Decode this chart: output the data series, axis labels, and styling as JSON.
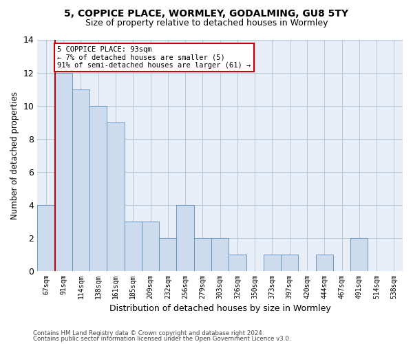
{
  "title1": "5, COPPICE PLACE, WORMLEY, GODALMING, GU8 5TY",
  "title2": "Size of property relative to detached houses in Wormley",
  "xlabel": "Distribution of detached houses by size in Wormley",
  "ylabel": "Number of detached properties",
  "categories": [
    "67sqm",
    "91sqm",
    "114sqm",
    "138sqm",
    "161sqm",
    "185sqm",
    "209sqm",
    "232sqm",
    "256sqm",
    "279sqm",
    "303sqm",
    "326sqm",
    "350sqm",
    "373sqm",
    "397sqm",
    "420sqm",
    "444sqm",
    "467sqm",
    "491sqm",
    "514sqm",
    "538sqm"
  ],
  "values": [
    4,
    12,
    11,
    10,
    9,
    3,
    3,
    2,
    4,
    2,
    2,
    1,
    0,
    1,
    1,
    0,
    1,
    0,
    2,
    0,
    0
  ],
  "bar_color": "#ccdcee",
  "bar_edge_color": "#5b8db8",
  "vline_x_index": 1,
  "vline_color": "#cc0000",
  "annotation_text": "5 COPPICE PLACE: 93sqm\n← 7% of detached houses are smaller (5)\n91% of semi-detached houses are larger (61) →",
  "annotation_box_color": "#cc0000",
  "ylim": [
    0,
    14
  ],
  "yticks": [
    0,
    2,
    4,
    6,
    8,
    10,
    12,
    14
  ],
  "footer1": "Contains HM Land Registry data © Crown copyright and database right 2024.",
  "footer2": "Contains public sector information licensed under the Open Government Licence v3.0.",
  "bg_color": "#ffffff",
  "grid_color": "#b8c8d8",
  "ax_bg_color": "#e8eef8"
}
